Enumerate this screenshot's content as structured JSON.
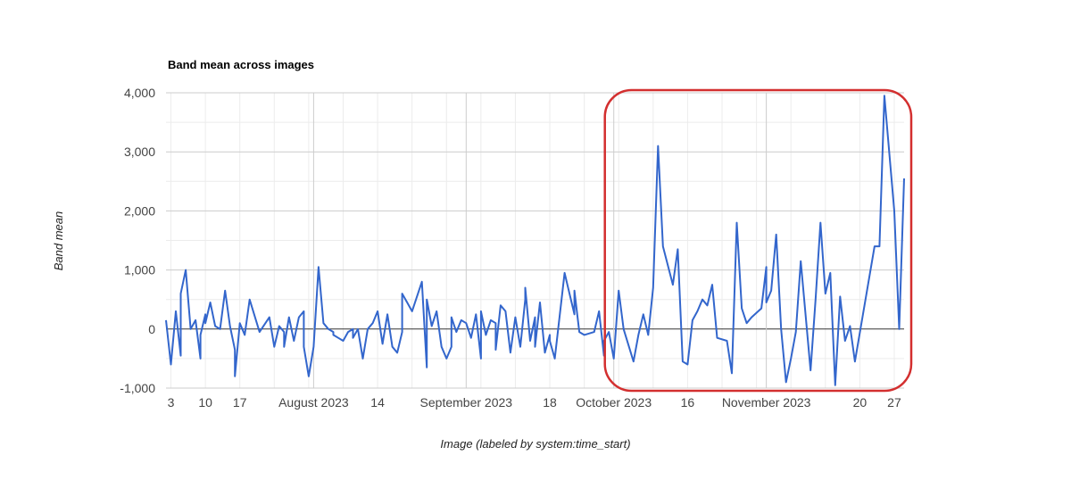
{
  "chart_data": {
    "type": "line",
    "title": "Band mean across images",
    "xlabel": "Image (labeled by system:time_start)",
    "ylabel": "Band mean",
    "ylim": [
      -1000,
      4000
    ],
    "yticks": [
      -1000,
      0,
      1000,
      2000,
      3000,
      4000
    ],
    "ytick_labels": [
      "-1,000",
      "0",
      "1,000",
      "2,000",
      "3,000",
      "4,000"
    ],
    "x_range": [
      "2023-07-02",
      "2023-11-29"
    ],
    "xticks": [
      {
        "date": "2023-07-03",
        "label": "3"
      },
      {
        "date": "2023-07-10",
        "label": "10"
      },
      {
        "date": "2023-07-17",
        "label": "17"
      },
      {
        "date": "2023-08-01",
        "label": "August 2023"
      },
      {
        "date": "2023-08-14",
        "label": "14"
      },
      {
        "date": "2023-09-01",
        "label": "September 2023"
      },
      {
        "date": "2023-09-18",
        "label": "18"
      },
      {
        "date": "2023-10-01",
        "label": "October 2023"
      },
      {
        "date": "2023-10-16",
        "label": "16"
      },
      {
        "date": "2023-11-01",
        "label": "November 2023"
      },
      {
        "date": "2023-11-20",
        "label": "20"
      },
      {
        "date": "2023-11-27",
        "label": "27"
      }
    ],
    "grid": true,
    "legend": "none",
    "line_color": "#3366cc",
    "highlight_color": "#d32f2f",
    "highlight_range": [
      "2023-10-01",
      "2023-11-29"
    ],
    "series": [
      {
        "x": [
          "2023-07-02",
          "2023-07-03",
          "2023-07-04",
          "2023-07-05",
          "2023-07-05",
          "2023-07-06",
          "2023-07-07",
          "2023-07-08",
          "2023-07-09",
          "2023-07-09",
          "2023-07-10",
          "2023-07-10",
          "2023-07-11",
          "2023-07-12",
          "2023-07-13",
          "2023-07-14",
          "2023-07-15",
          "2023-07-16",
          "2023-07-16",
          "2023-07-17",
          "2023-07-18",
          "2023-07-19",
          "2023-07-21",
          "2023-07-23",
          "2023-07-24",
          "2023-07-25",
          "2023-07-26",
          "2023-07-26",
          "2023-07-27",
          "2023-07-28",
          "2023-07-29",
          "2023-07-30",
          "2023-07-30",
          "2023-07-31",
          "2023-08-01",
          "2023-08-02",
          "2023-08-03",
          "2023-08-04",
          "2023-08-05",
          "2023-08-05",
          "2023-08-06",
          "2023-08-07",
          "2023-08-08",
          "2023-08-09",
          "2023-08-09",
          "2023-08-10",
          "2023-08-11",
          "2023-08-12",
          "2023-08-13",
          "2023-08-14",
          "2023-08-15",
          "2023-08-16",
          "2023-08-17",
          "2023-08-18",
          "2023-08-19",
          "2023-08-19",
          "2023-08-20",
          "2023-08-21",
          "2023-08-23",
          "2023-08-24",
          "2023-08-24",
          "2023-08-25",
          "2023-08-26",
          "2023-08-27",
          "2023-08-28",
          "2023-08-29",
          "2023-08-29",
          "2023-08-30",
          "2023-08-31",
          "2023-09-01",
          "2023-09-02",
          "2023-09-03",
          "2023-09-04",
          "2023-09-04",
          "2023-09-05",
          "2023-09-06",
          "2023-09-07",
          "2023-09-07",
          "2023-09-08",
          "2023-09-09",
          "2023-09-10",
          "2023-09-11",
          "2023-09-12",
          "2023-09-13",
          "2023-09-13",
          "2023-09-14",
          "2023-09-15",
          "2023-09-15",
          "2023-09-16",
          "2023-09-17",
          "2023-09-18",
          "2023-09-18",
          "2023-09-19",
          "2023-09-21",
          "2023-09-22",
          "2023-09-23",
          "2023-09-23",
          "2023-09-24",
          "2023-09-25",
          "2023-09-27",
          "2023-09-28",
          "2023-09-29",
          "2023-09-29",
          "2023-09-30",
          "2023-10-01",
          "2023-10-02",
          "2023-10-03",
          "2023-10-05",
          "2023-10-06",
          "2023-10-07",
          "2023-10-08",
          "2023-10-09",
          "2023-10-10",
          "2023-10-11",
          "2023-10-13",
          "2023-10-14",
          "2023-10-15",
          "2023-10-16",
          "2023-10-17",
          "2023-10-18",
          "2023-10-19",
          "2023-10-20",
          "2023-10-21",
          "2023-10-22",
          "2023-10-24",
          "2023-10-25",
          "2023-10-26",
          "2023-10-27",
          "2023-10-28",
          "2023-10-29",
          "2023-10-31",
          "2023-11-01",
          "2023-11-01",
          "2023-11-02",
          "2023-11-03",
          "2023-11-04",
          "2023-11-05",
          "2023-11-06",
          "2023-11-07",
          "2023-11-08",
          "2023-11-10",
          "2023-11-11",
          "2023-11-12",
          "2023-11-13",
          "2023-11-14",
          "2023-11-15",
          "2023-11-16",
          "2023-11-17",
          "2023-11-18",
          "2023-11-19",
          "2023-11-23",
          "2023-11-24",
          "2023-11-25",
          "2023-11-27",
          "2023-11-28",
          "2023-11-29"
        ],
        "values": [
          150,
          -600,
          300,
          -450,
          600,
          1000,
          0,
          150,
          -500,
          -100,
          250,
          100,
          450,
          50,
          0,
          650,
          50,
          -350,
          -800,
          100,
          -100,
          500,
          -50,
          200,
          -300,
          50,
          -50,
          -300,
          200,
          -200,
          200,
          300,
          -300,
          -800,
          -300,
          1050,
          100,
          0,
          -50,
          -100,
          -150,
          -200,
          -50,
          0,
          -150,
          0,
          -500,
          0,
          100,
          300,
          -250,
          250,
          -300,
          -400,
          -50,
          600,
          450,
          300,
          800,
          -650,
          500,
          50,
          300,
          -300,
          -500,
          -300,
          200,
          -50,
          150,
          100,
          -150,
          250,
          -500,
          300,
          -100,
          150,
          100,
          -350,
          400,
          300,
          -400,
          200,
          -300,
          500,
          700,
          -200,
          200,
          -300,
          450,
          -400,
          -100,
          -200,
          -500,
          950,
          600,
          250,
          650,
          -50,
          -100,
          -50,
          300,
          -450,
          -200,
          -50,
          -500,
          650,
          0,
          -550,
          -100,
          250,
          -100,
          700,
          3100,
          1400,
          750,
          1350,
          -550,
          -600,
          150,
          300,
          500,
          400,
          750,
          -150,
          -200,
          -750,
          1800,
          350,
          100,
          200,
          350,
          1050,
          450,
          650,
          1600,
          0,
          -900,
          -500,
          -50,
          1150,
          -700,
          500,
          1800,
          600,
          950,
          -950,
          550,
          -200,
          50,
          -550,
          1400,
          1400,
          3950,
          2000,
          0,
          2550
        ]
      }
    ]
  }
}
